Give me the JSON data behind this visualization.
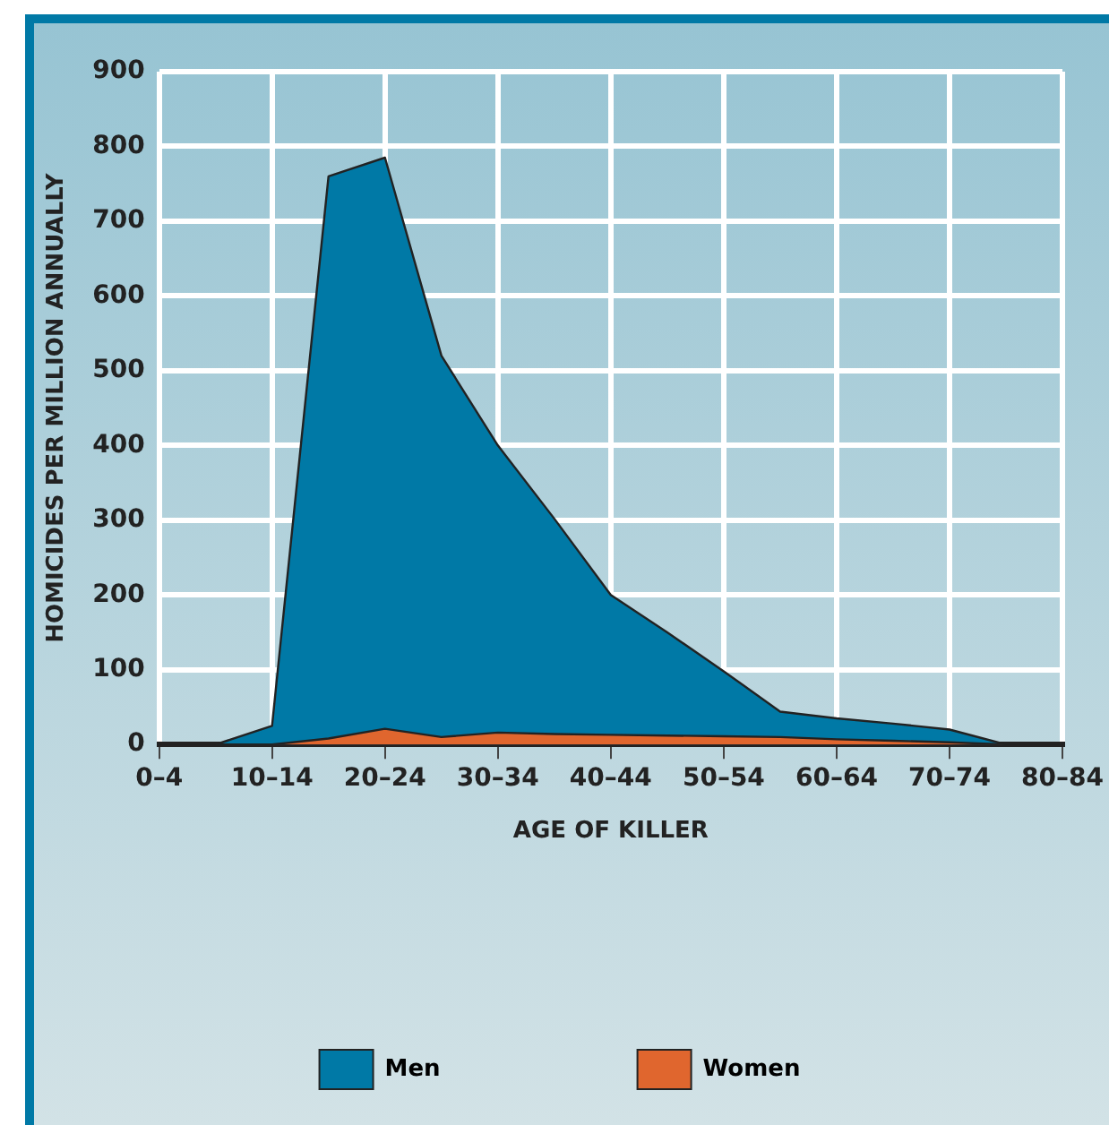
{
  "chart_data": {
    "type": "area",
    "xlabel": "AGE OF KILLER",
    "ylabel": "HOMICIDES PER MILLION ANNUALLY",
    "categories": [
      "0–4",
      null,
      "10–14",
      null,
      "20–24",
      null,
      "30–34",
      null,
      "40–44",
      null,
      "50–54",
      null,
      "60–64",
      null,
      "70–74",
      null,
      "80–84"
    ],
    "series": [
      {
        "name": "Men",
        "color": "#0079a6",
        "values": [
          0,
          0,
          25,
          760,
          785,
          520,
          400,
          302,
          200,
          150,
          98,
          44,
          35,
          28,
          20,
          0,
          0
        ]
      },
      {
        "name": "Women",
        "color": "#e0662e",
        "values": [
          0,
          0,
          0,
          8,
          21,
          10,
          16,
          14,
          13,
          12,
          11,
          10,
          7,
          5,
          3,
          0,
          0
        ]
      }
    ],
    "ylim": [
      0,
      900
    ],
    "yticks": [
      0,
      100,
      200,
      300,
      400,
      500,
      600,
      700,
      800,
      900
    ],
    "grid": true,
    "legend": "bottom",
    "marker": "none",
    "line_style": "solid"
  }
}
